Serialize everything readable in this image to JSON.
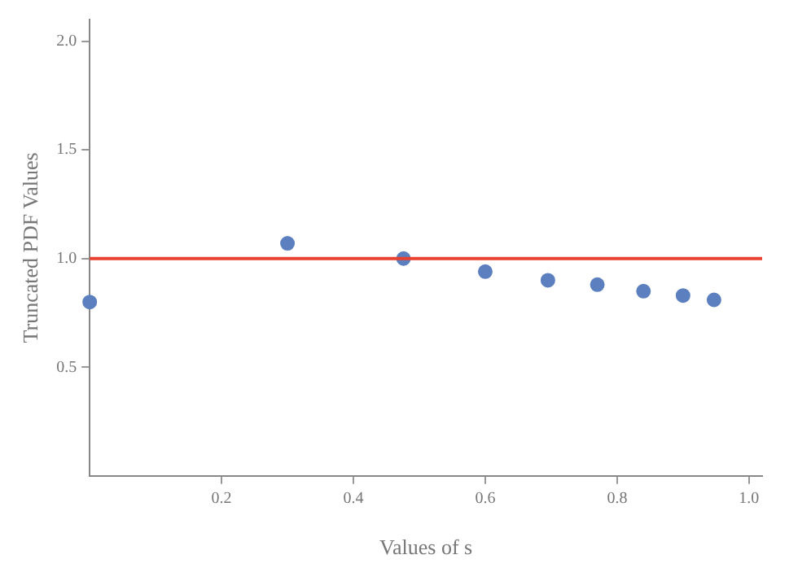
{
  "chart_data": {
    "type": "scatter",
    "xlabel": "Values of s",
    "ylabel": "Truncated PDF Values",
    "x": [
      0,
      0.3,
      0.476,
      0.6,
      0.695,
      0.77,
      0.84,
      0.9,
      0.947
    ],
    "series": [
      {
        "color": "#5b7fbf",
        "values": [
          0.8,
          1.07,
          1.0,
          0.94,
          0.9,
          0.88,
          0.85,
          0.83,
          0.81
        ]
      }
    ],
    "xlim": [
      0,
      1.02
    ],
    "ylim": [
      0,
      2.1
    ],
    "xticks": [
      0.2,
      0.4,
      0.6,
      0.8,
      {
        "value": 1,
        "label": "1.0"
      }
    ],
    "yticks": [
      0.5,
      {
        "value": 1,
        "label": "1.0"
      },
      1.5,
      {
        "value": 2,
        "label": "2.0"
      }
    ],
    "ref_lines": [
      {
        "axis": "y",
        "value": 1,
        "color": "#e8412f"
      }
    ],
    "marker": "circle",
    "grid": false,
    "legend": false
  }
}
